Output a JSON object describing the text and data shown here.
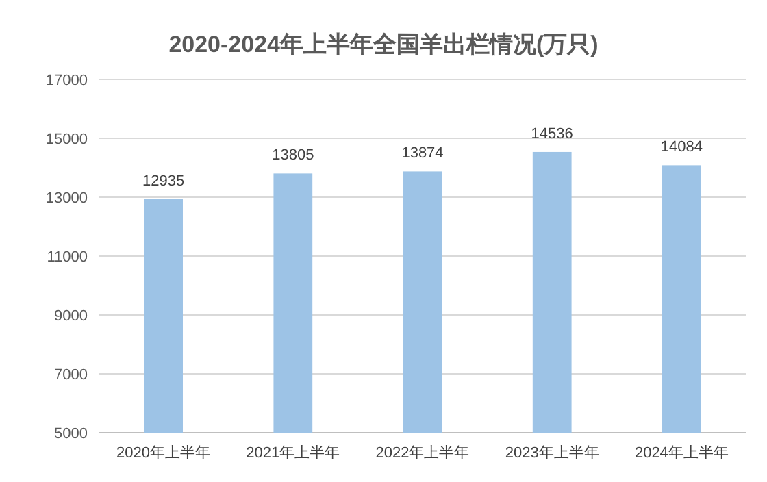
{
  "chart_data": {
    "type": "bar",
    "title": "2020-2024年上半年全国羊出栏情况(万只)",
    "categories": [
      "2020年上半年",
      "2021年上半年",
      "2022年上半年",
      "2023年上半年",
      "2024年上半年"
    ],
    "values": [
      12935,
      13805,
      13874,
      14536,
      14084
    ],
    "color": "#9dc3e6",
    "ylim": [
      5000,
      17000
    ],
    "yticks": [
      5000,
      7000,
      9000,
      11000,
      13000,
      15000,
      17000
    ],
    "grid": "y",
    "data_labels": true
  }
}
